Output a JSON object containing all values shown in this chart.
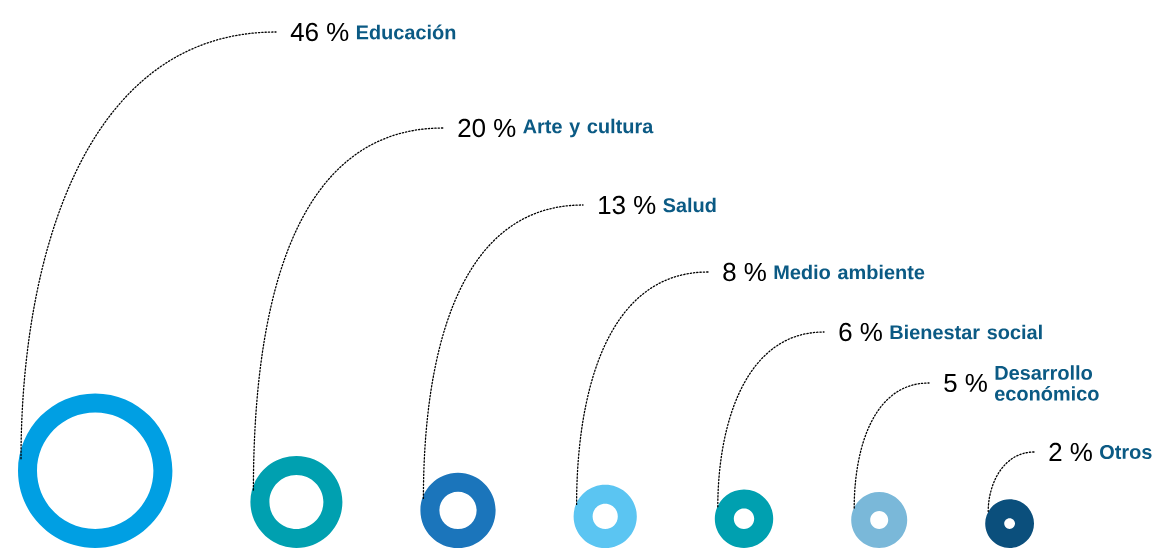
{
  "chart_data": {
    "type": "other",
    "categories": [
      "Educación",
      "Arte y cultura",
      "Salud",
      "Medio ambiente",
      "Bienestar social",
      "Desarrollo económico",
      "Otros"
    ],
    "values": [
      46,
      20,
      13,
      8,
      6,
      5,
      2
    ],
    "value_labels": [
      "46 %",
      "20 %",
      "13 %",
      "8 %",
      "6 %",
      "5 %",
      "2 %"
    ],
    "colors": [
      "#009fe3",
      "#00a0b0",
      "#1b75bb",
      "#5bc5f2",
      "#00a0b0",
      "#7ab8d9",
      "#0b4f7c"
    ]
  }
}
